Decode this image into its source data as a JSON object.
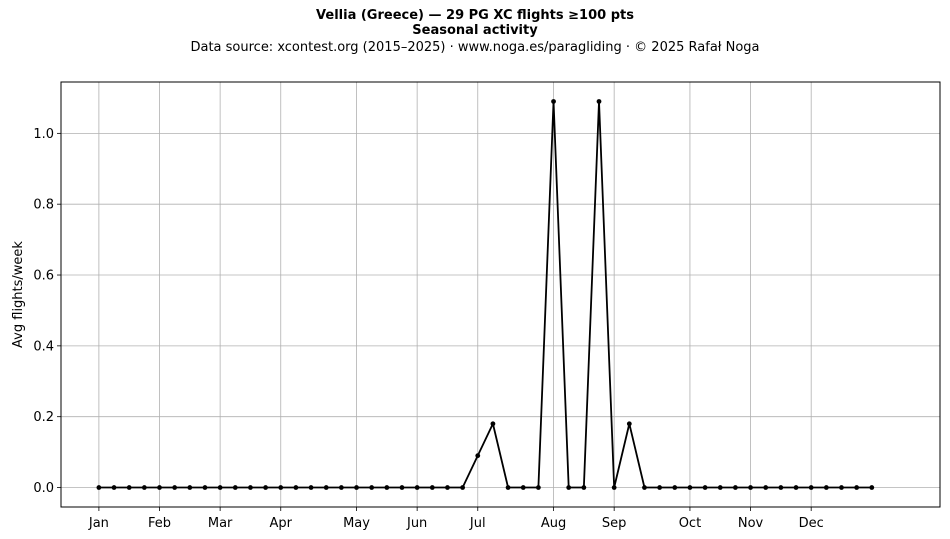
{
  "header": {
    "title": "Vellia (Greece)  —  29 PG XC flights ≥100 pts",
    "subtitle": "Seasonal activity",
    "source": "Data source: xcontest.org (2015–2025)  ·  www.noga.es/paragliding  ·  © 2025 Rafał Noga"
  },
  "chart_data": {
    "type": "line",
    "title": "Vellia (Greece)  —  29 PG XC flights ≥100 pts",
    "subtitle": "Seasonal activity",
    "xlabel": "",
    "ylabel": "Avg flights/week",
    "x_unit": "week of year",
    "xlim": [
      -2.5,
      55.5
    ],
    "ylim": [
      -0.055,
      1.145
    ],
    "yticks": [
      0.0,
      0.2,
      0.4,
      0.6,
      0.8,
      1.0
    ],
    "ytick_labels": [
      "0.0",
      "0.2",
      "0.4",
      "0.6",
      "0.8",
      "1.0"
    ],
    "xticks": [
      0,
      4,
      8,
      12,
      17,
      21,
      25,
      30,
      34,
      39,
      43,
      47
    ],
    "xtick_labels": [
      "Jan",
      "Feb",
      "Mar",
      "Apr",
      "May",
      "Jun",
      "Jul",
      "Aug",
      "Sep",
      "Oct",
      "Nov",
      "Dec"
    ],
    "grid": true,
    "line_color": "#000000",
    "series": [
      {
        "x": [
          0,
          1,
          2,
          3,
          4,
          5,
          6,
          7,
          8,
          9,
          10,
          11,
          12,
          13,
          14,
          15,
          16,
          17,
          18,
          19,
          20,
          21,
          22,
          23,
          24,
          25,
          26,
          27,
          28,
          29,
          30,
          31,
          32,
          33,
          34,
          35,
          36,
          37,
          38,
          39,
          40,
          41,
          42,
          43,
          44,
          45,
          46,
          47,
          48,
          49,
          50,
          51
        ],
        "values": [
          0,
          0,
          0,
          0,
          0,
          0,
          0,
          0,
          0,
          0,
          0,
          0,
          0,
          0,
          0,
          0,
          0,
          0,
          0,
          0,
          0,
          0,
          0,
          0,
          0,
          0.09,
          0.18,
          0,
          0,
          0,
          1.09,
          0,
          0,
          1.09,
          0,
          0.18,
          0,
          0,
          0,
          0,
          0,
          0,
          0,
          0,
          0,
          0,
          0,
          0,
          0,
          0,
          0,
          0
        ]
      }
    ]
  }
}
